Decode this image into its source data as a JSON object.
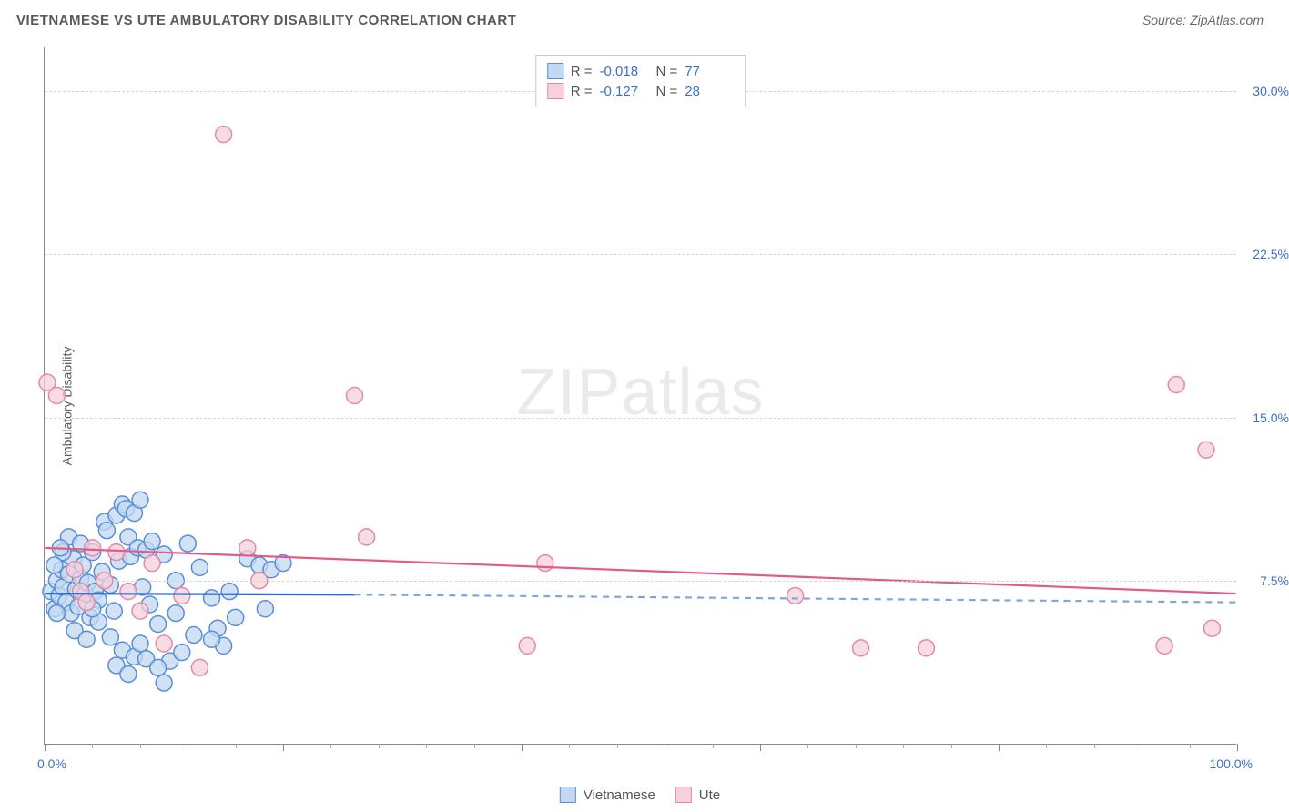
{
  "title": "VIETNAMESE VS UTE AMBULATORY DISABILITY CORRELATION CHART",
  "source": "Source: ZipAtlas.com",
  "y_axis_label": "Ambulatory Disability",
  "watermark_a": "ZIP",
  "watermark_b": "atlas",
  "chart": {
    "type": "scatter",
    "background_color": "#ffffff",
    "grid_color": "#d5d5d5",
    "axis_color": "#888888",
    "tick_label_color": "#3a72c8",
    "xlim": [
      0,
      100
    ],
    "ylim": [
      0,
      32
    ],
    "x_min_label": "0.0%",
    "x_max_label": "100.0%",
    "y_ticks": [
      {
        "v": 7.5,
        "label": "7.5%"
      },
      {
        "v": 15.0,
        "label": "15.0%"
      },
      {
        "v": 22.5,
        "label": "22.5%"
      },
      {
        "v": 30.0,
        "label": "30.0%"
      }
    ],
    "x_major_ticks": [
      0,
      20,
      40,
      60,
      80,
      100
    ],
    "x_minor_ticks": [
      4,
      8,
      12,
      16,
      24,
      28,
      32,
      36,
      44,
      48,
      52,
      56,
      64,
      68,
      72,
      76,
      84,
      88,
      92,
      96
    ],
    "marker_radius": 9,
    "marker_stroke_width": 1.5,
    "line_width": 2.2,
    "series": [
      {
        "name": "Vietnamese",
        "fill": "#c3d8f2",
        "stroke": "#5a8fd6",
        "line_color": "#2f66c2",
        "dash_color": "#7ea6db",
        "R": "-0.018",
        "N": "77",
        "trend": {
          "x1": 0,
          "y1": 6.9,
          "x2": 26,
          "y2": 6.85,
          "dash_x2": 100,
          "dash_y2": 6.5
        },
        "points": [
          [
            0.5,
            7.0
          ],
          [
            0.8,
            6.2
          ],
          [
            1.0,
            7.5
          ],
          [
            1.2,
            6.8
          ],
          [
            1.4,
            8.0
          ],
          [
            1.5,
            7.2
          ],
          [
            1.8,
            6.5
          ],
          [
            2.0,
            7.8
          ],
          [
            2.2,
            6.0
          ],
          [
            2.4,
            8.5
          ],
          [
            2.6,
            7.1
          ],
          [
            2.8,
            6.3
          ],
          [
            3.0,
            7.6
          ],
          [
            3.2,
            8.2
          ],
          [
            3.4,
            6.9
          ],
          [
            3.6,
            7.4
          ],
          [
            3.8,
            5.8
          ],
          [
            4.0,
            8.8
          ],
          [
            4.2,
            7.0
          ],
          [
            4.5,
            6.6
          ],
          [
            4.8,
            7.9
          ],
          [
            5.0,
            10.2
          ],
          [
            5.2,
            9.8
          ],
          [
            5.5,
            7.3
          ],
          [
            5.8,
            6.1
          ],
          [
            6.0,
            10.5
          ],
          [
            6.2,
            8.4
          ],
          [
            6.5,
            11.0
          ],
          [
            6.8,
            10.8
          ],
          [
            7.0,
            9.5
          ],
          [
            7.2,
            8.6
          ],
          [
            7.5,
            10.6
          ],
          [
            7.8,
            9.0
          ],
          [
            8.0,
            11.2
          ],
          [
            8.2,
            7.2
          ],
          [
            8.5,
            8.9
          ],
          [
            8.8,
            6.4
          ],
          [
            9.0,
            9.3
          ],
          [
            9.5,
            5.5
          ],
          [
            10.0,
            8.7
          ],
          [
            10.5,
            3.8
          ],
          [
            11.0,
            7.5
          ],
          [
            11.5,
            4.2
          ],
          [
            12.0,
            9.2
          ],
          [
            12.5,
            5.0
          ],
          [
            13.0,
            8.1
          ],
          [
            14.0,
            6.7
          ],
          [
            14.5,
            5.3
          ],
          [
            15.0,
            4.5
          ],
          [
            15.5,
            7.0
          ],
          [
            16.0,
            5.8
          ],
          [
            17.0,
            8.5
          ],
          [
            18.0,
            8.2
          ],
          [
            18.5,
            6.2
          ],
          [
            19.0,
            8.0
          ],
          [
            20.0,
            8.3
          ],
          [
            2.5,
            5.2
          ],
          [
            3.5,
            4.8
          ],
          [
            4.5,
            5.6
          ],
          [
            5.5,
            4.9
          ],
          [
            6.5,
            4.3
          ],
          [
            7.5,
            4.0
          ],
          [
            8.5,
            3.9
          ],
          [
            9.5,
            3.5
          ],
          [
            2.0,
            9.5
          ],
          [
            1.5,
            8.8
          ],
          [
            1.0,
            6.0
          ],
          [
            0.8,
            8.2
          ],
          [
            1.3,
            9.0
          ],
          [
            3.0,
            9.2
          ],
          [
            4.0,
            6.2
          ],
          [
            11.0,
            6.0
          ],
          [
            14.0,
            4.8
          ],
          [
            10.0,
            2.8
          ],
          [
            6.0,
            3.6
          ],
          [
            7.0,
            3.2
          ],
          [
            8.0,
            4.6
          ]
        ]
      },
      {
        "name": "Ute",
        "fill": "#f6d0db",
        "stroke": "#e38aa5",
        "line_color": "#e35a86",
        "R": "-0.127",
        "N": "28",
        "trend": {
          "x1": 0,
          "y1": 9.0,
          "x2": 100,
          "y2": 6.9
        },
        "points": [
          [
            0.2,
            16.6
          ],
          [
            1.0,
            16.0
          ],
          [
            2.5,
            8.0
          ],
          [
            3.0,
            7.0
          ],
          [
            3.5,
            6.5
          ],
          [
            4.0,
            9.0
          ],
          [
            5.0,
            7.5
          ],
          [
            6.0,
            8.8
          ],
          [
            7.0,
            7.0
          ],
          [
            8.0,
            6.1
          ],
          [
            9.0,
            8.3
          ],
          [
            10.0,
            4.6
          ],
          [
            11.5,
            6.8
          ],
          [
            13.0,
            3.5
          ],
          [
            15.0,
            28.0
          ],
          [
            17.0,
            9.0
          ],
          [
            18.0,
            7.5
          ],
          [
            26.0,
            16.0
          ],
          [
            27.0,
            9.5
          ],
          [
            42.0,
            8.3
          ],
          [
            40.5,
            4.5
          ],
          [
            63.0,
            6.8
          ],
          [
            68.5,
            4.4
          ],
          [
            74.0,
            4.4
          ],
          [
            95.0,
            16.5
          ],
          [
            97.5,
            13.5
          ],
          [
            98.0,
            5.3
          ],
          [
            94.0,
            4.5
          ]
        ]
      }
    ]
  },
  "legend_stats_labels": {
    "R": "R =",
    "N": "N ="
  },
  "bottom_legend_title": ""
}
